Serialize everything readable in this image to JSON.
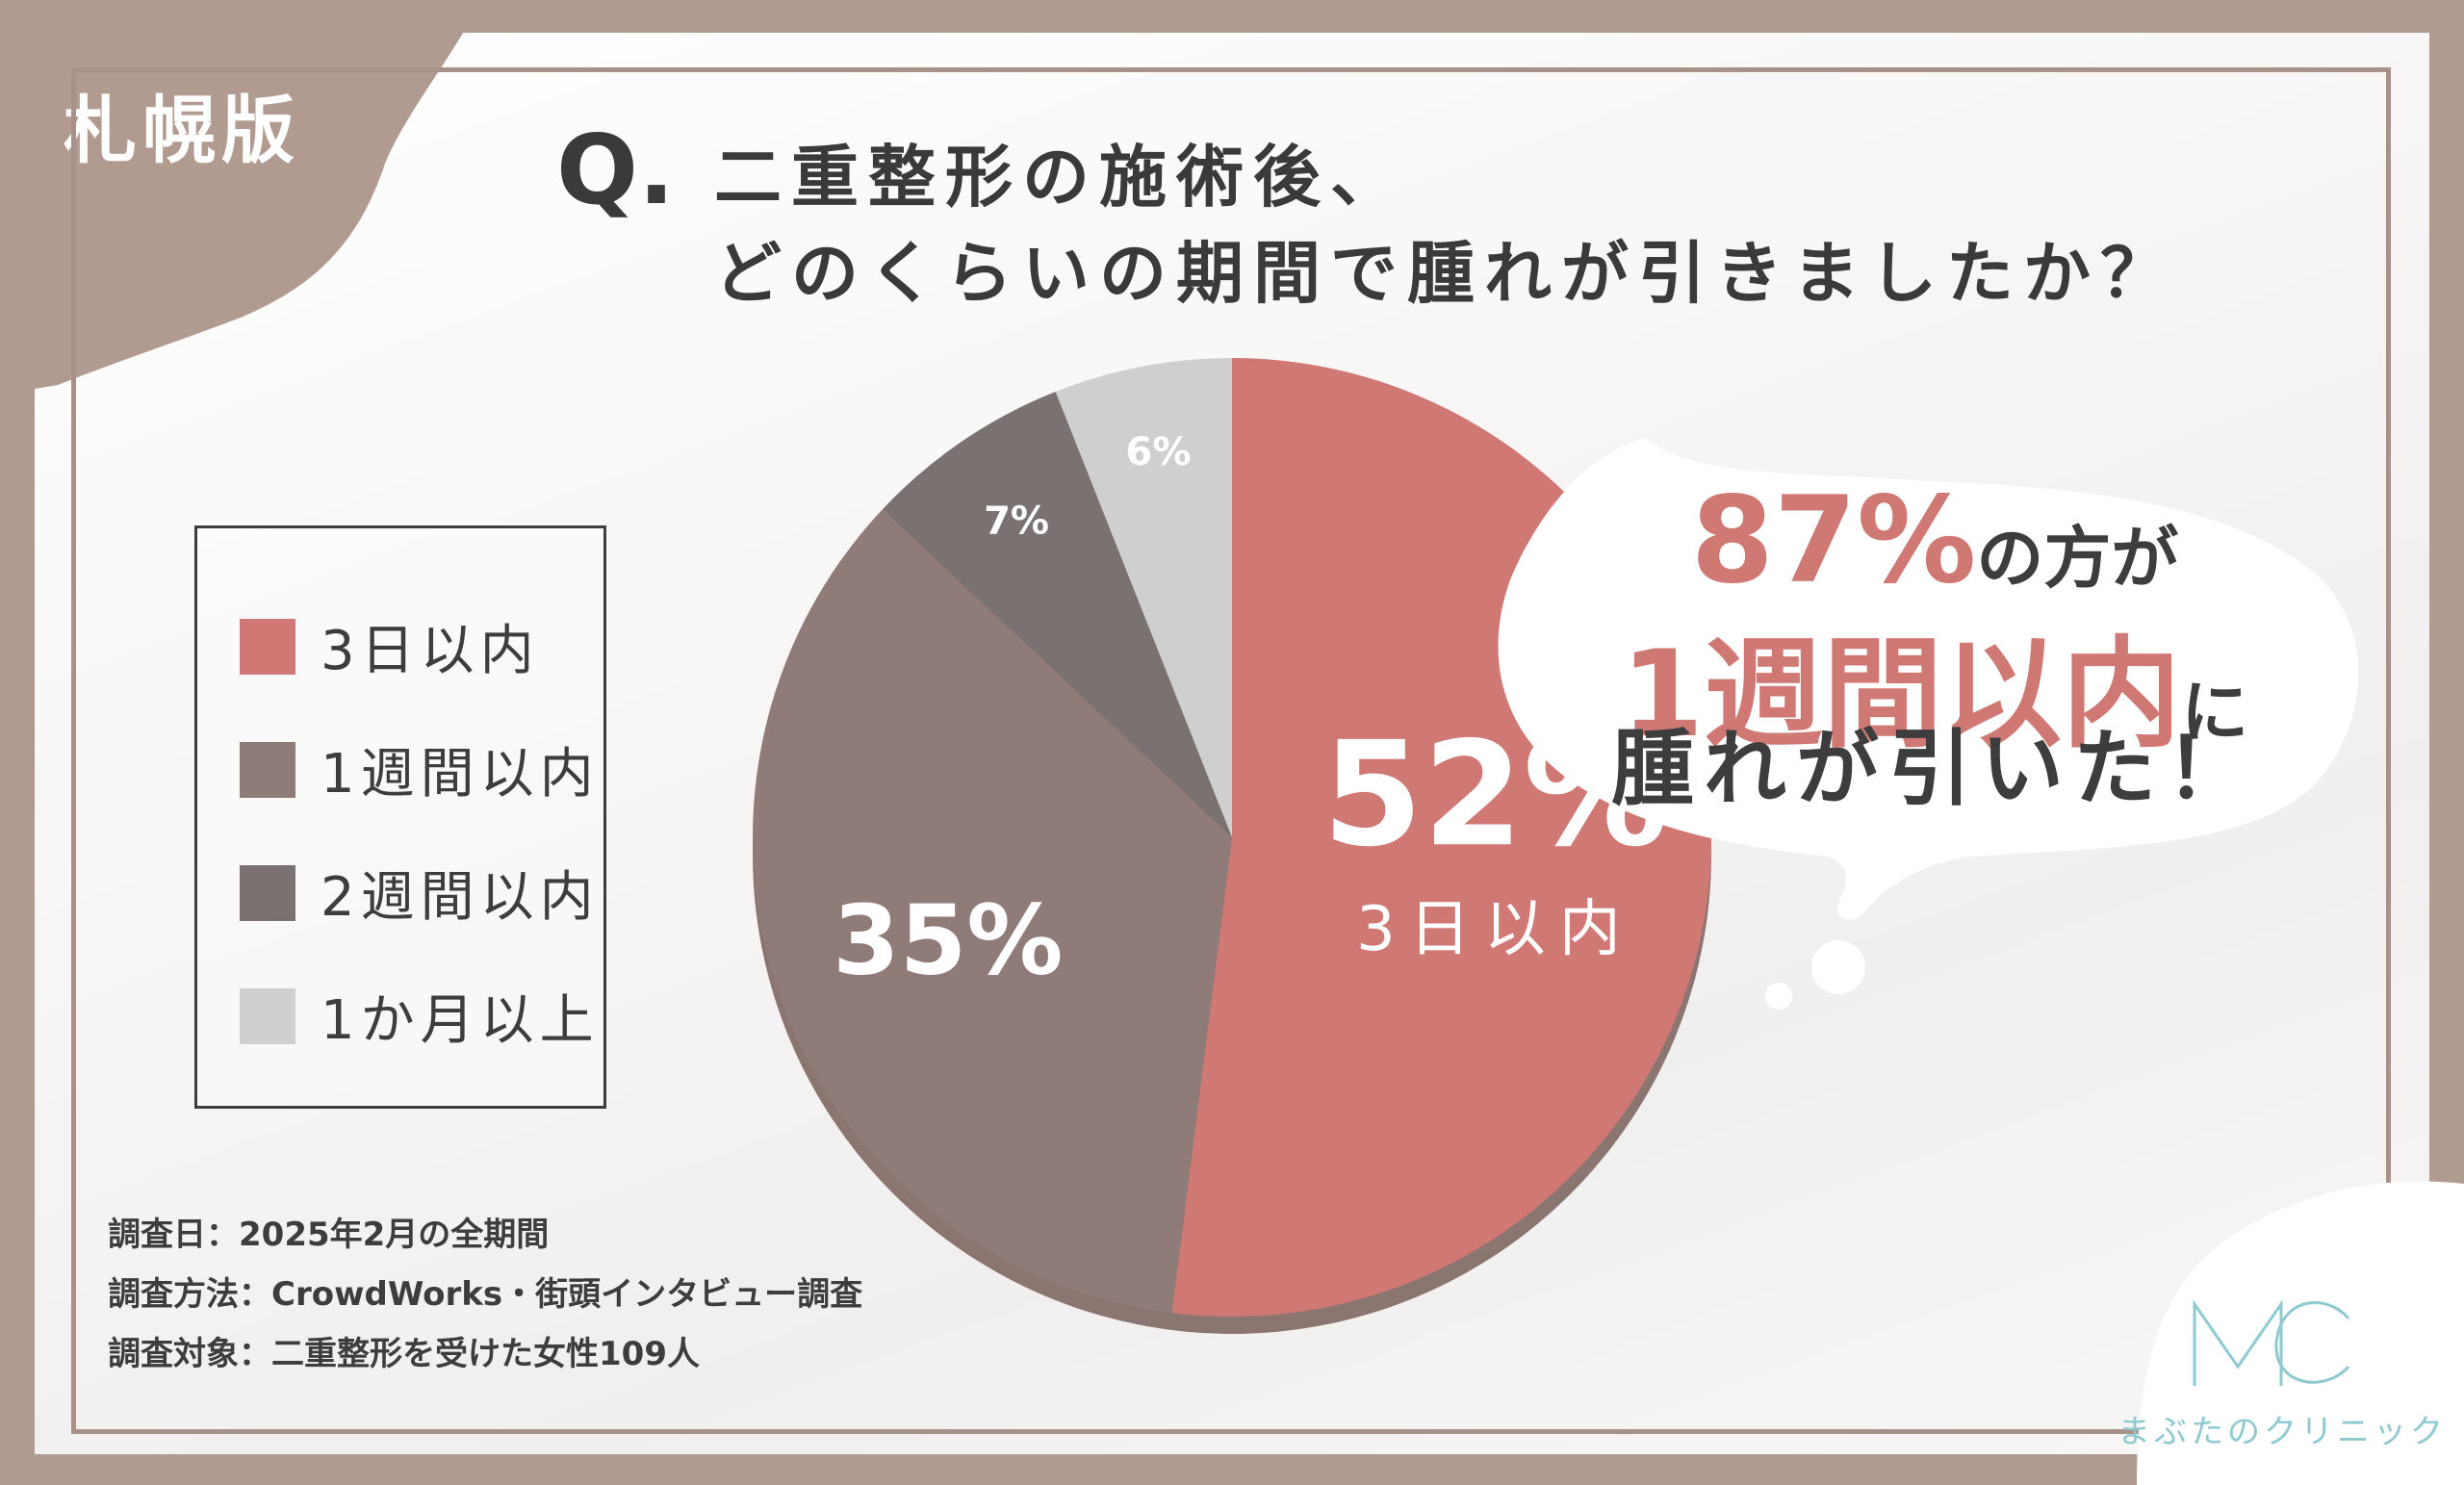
{
  "region": "札幌版",
  "question": {
    "prefix": "Q.",
    "line1": "二重整形の施術後、",
    "line2": "どのくらいの期間で腫れが引きましたか？"
  },
  "legend": [
    {
      "label": "3日以内",
      "color": "#d07874"
    },
    {
      "label": "1週間以内",
      "color": "#8f7b77"
    },
    {
      "label": "2週間以内",
      "color": "#797270"
    },
    {
      "label": "1か月以上",
      "color": "#cfcfcf"
    }
  ],
  "chart_data": {
    "type": "pie",
    "categories": [
      "3日以内",
      "1週間以内",
      "2週間以内",
      "1か月以上"
    ],
    "values": [
      52,
      35,
      7,
      6
    ],
    "unit": "%",
    "slice_labels": [
      "52%",
      "35%",
      "7%",
      "6%"
    ],
    "highlight_label": "3日以内",
    "colors": [
      "#d07874",
      "#8f7b77",
      "#797270",
      "#cfcfcf"
    ]
  },
  "callout": {
    "pct": "87%",
    "line1_rest": "の方が",
    "line2_accent": "1週間以内",
    "line2_rest": "に",
    "line3": "腫れが引いた！"
  },
  "notes": [
    "調査日：2025年2月の全期間",
    "調査方法：CrowdWorks・街頭インタビュー調査",
    "調査対象：二重整形を受けた女性109人"
  ],
  "logo": {
    "mark": "MC",
    "name": "まぶたのクリニック"
  }
}
